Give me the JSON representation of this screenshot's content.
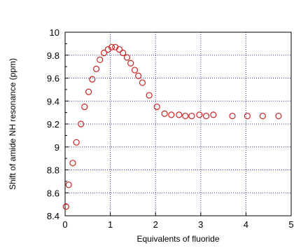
{
  "chart_data": {
    "type": "scatter",
    "xlabel": "Equivalents of fluoride",
    "ylabel": "Shift of amide NH resonance (ppm)",
    "xlim": [
      0,
      5
    ],
    "ylim": [
      8.4,
      10
    ],
    "x_ticks": [
      "0",
      "1",
      "2",
      "3",
      "4",
      "5"
    ],
    "y_ticks": [
      "8.4",
      "8.6",
      "8.8",
      "9",
      "9.2",
      "9.4",
      "9.6",
      "9.8",
      "10"
    ],
    "grid": true,
    "marker_color": "#cc2222",
    "grid_color": "#3333aa",
    "points": [
      {
        "x": 0.02,
        "y": 8.48
      },
      {
        "x": 0.08,
        "y": 8.67
      },
      {
        "x": 0.17,
        "y": 8.86
      },
      {
        "x": 0.25,
        "y": 9.04
      },
      {
        "x": 0.35,
        "y": 9.2
      },
      {
        "x": 0.43,
        "y": 9.35
      },
      {
        "x": 0.52,
        "y": 9.48
      },
      {
        "x": 0.6,
        "y": 9.59
      },
      {
        "x": 0.69,
        "y": 9.68
      },
      {
        "x": 0.77,
        "y": 9.76
      },
      {
        "x": 0.86,
        "y": 9.82
      },
      {
        "x": 0.95,
        "y": 9.85
      },
      {
        "x": 1.03,
        "y": 9.87
      },
      {
        "x": 1.11,
        "y": 9.87
      },
      {
        "x": 1.2,
        "y": 9.85
      },
      {
        "x": 1.28,
        "y": 9.82
      },
      {
        "x": 1.37,
        "y": 9.78
      },
      {
        "x": 1.45,
        "y": 9.73
      },
      {
        "x": 1.54,
        "y": 9.67
      },
      {
        "x": 1.62,
        "y": 9.62
      },
      {
        "x": 1.71,
        "y": 9.56
      },
      {
        "x": 1.86,
        "y": 9.45
      },
      {
        "x": 2.03,
        "y": 9.35
      },
      {
        "x": 2.2,
        "y": 9.29
      },
      {
        "x": 2.35,
        "y": 9.28
      },
      {
        "x": 2.52,
        "y": 9.28
      },
      {
        "x": 2.66,
        "y": 9.27
      },
      {
        "x": 2.8,
        "y": 9.27
      },
      {
        "x": 2.97,
        "y": 9.28
      },
      {
        "x": 3.12,
        "y": 9.27
      },
      {
        "x": 3.28,
        "y": 9.28
      },
      {
        "x": 3.7,
        "y": 9.27
      },
      {
        "x": 4.03,
        "y": 9.27
      },
      {
        "x": 4.37,
        "y": 9.27
      },
      {
        "x": 4.72,
        "y": 9.27
      }
    ]
  }
}
